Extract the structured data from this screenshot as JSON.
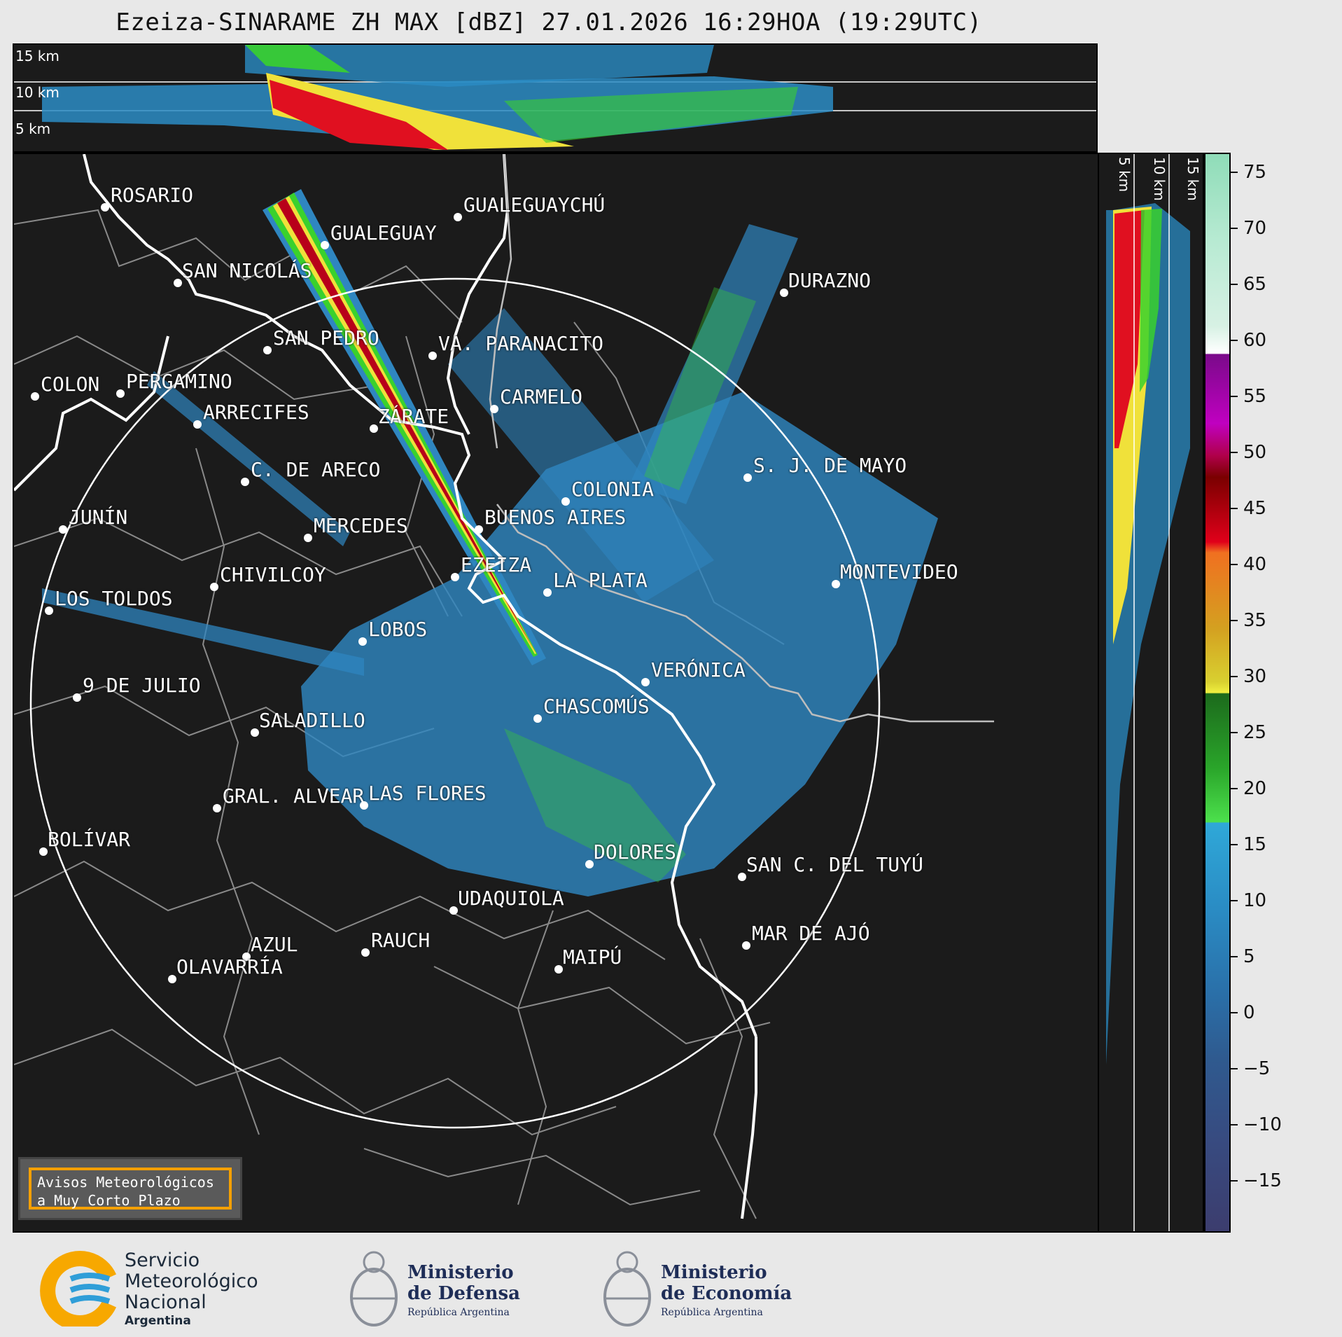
{
  "title": "Ezeiza-SINARAME ZH MAX [dBZ] 27.01.2026 16:29HOA (19:29UTC)",
  "top_panel": {
    "height_labels": [
      "15 km",
      "10 km",
      "5 km"
    ]
  },
  "side_panel": {
    "height_labels": [
      "5 km",
      "10 km",
      "15 km"
    ]
  },
  "colorbar": {
    "unit": "dBZ",
    "range": [
      -20,
      77
    ],
    "ticks": [
      75,
      70,
      65,
      60,
      55,
      50,
      45,
      40,
      35,
      30,
      25,
      20,
      15,
      10,
      5,
      0,
      -5,
      -10,
      -15
    ],
    "tick_labels": [
      "75",
      "70",
      "65",
      "60",
      "55",
      "50",
      "45",
      "40",
      "35",
      "30",
      "25",
      "20",
      "15",
      "10",
      "5",
      "0",
      "−5",
      "−10",
      "−15"
    ]
  },
  "range_ring_km": 240,
  "radar_site": "EZEIZA",
  "cities": [
    {
      "name": "ROSARIO"
    },
    {
      "name": "GUALEGUAYCHÚ"
    },
    {
      "name": "GUALEGUAY"
    },
    {
      "name": "SAN NICOLÁS"
    },
    {
      "name": "DURAZNO"
    },
    {
      "name": "SAN PEDRO"
    },
    {
      "name": "VA. PARANACITO"
    },
    {
      "name": "COLON"
    },
    {
      "name": "PERGAMINO"
    },
    {
      "name": "CARMELO"
    },
    {
      "name": "ARRECIFES"
    },
    {
      "name": "ZÁRATE"
    },
    {
      "name": "S. J. DE MAYO"
    },
    {
      "name": "C. DE ARECO"
    },
    {
      "name": "COLONIA"
    },
    {
      "name": "JUNÍN"
    },
    {
      "name": "BUENOS AIRES"
    },
    {
      "name": "MERCEDES"
    },
    {
      "name": "MONTEVIDEO"
    },
    {
      "name": "EZEIZA"
    },
    {
      "name": "CHIVILCOY"
    },
    {
      "name": "LA PLATA"
    },
    {
      "name": "LOS TOLDOS"
    },
    {
      "name": "LOBOS"
    },
    {
      "name": "VERÓNICA"
    },
    {
      "name": "9 DE JULIO"
    },
    {
      "name": "CHASCOMÚS"
    },
    {
      "name": "SALADILLO"
    },
    {
      "name": "GRAL. ALVEAR"
    },
    {
      "name": "LAS FLORES"
    },
    {
      "name": "BOLÍVAR"
    },
    {
      "name": "DOLORES"
    },
    {
      "name": "SAN C. DEL TUYÚ"
    },
    {
      "name": "UDAQUIOLA"
    },
    {
      "name": "AZUL"
    },
    {
      "name": "RAUCH"
    },
    {
      "name": "MAR DE AJÓ"
    },
    {
      "name": "OLAVARRÍA"
    },
    {
      "name": "MAIPÚ"
    }
  ],
  "avisos": {
    "line1": "Avisos Meteorológicos",
    "line2": "a Muy Corto Plazo"
  },
  "logos": {
    "smn": {
      "line1": "Servicio",
      "line2": "Meteorológico",
      "line3": "Nacional",
      "line4": "Argentina"
    },
    "defensa": {
      "line1": "Ministerio",
      "line2": "de Defensa",
      "line3": "República Argentina"
    },
    "economia": {
      "line1": "Ministerio",
      "line2": "de Economía",
      "line3": "República Argentina"
    }
  },
  "colors": {
    "background": "#1b1b1b",
    "coast": "#ffffff",
    "admin_borders": "#8a8a8a",
    "avisos_border": "#f5a000",
    "smn_blue": "#2f9ed8",
    "smn_yellow": "#f7a800"
  }
}
